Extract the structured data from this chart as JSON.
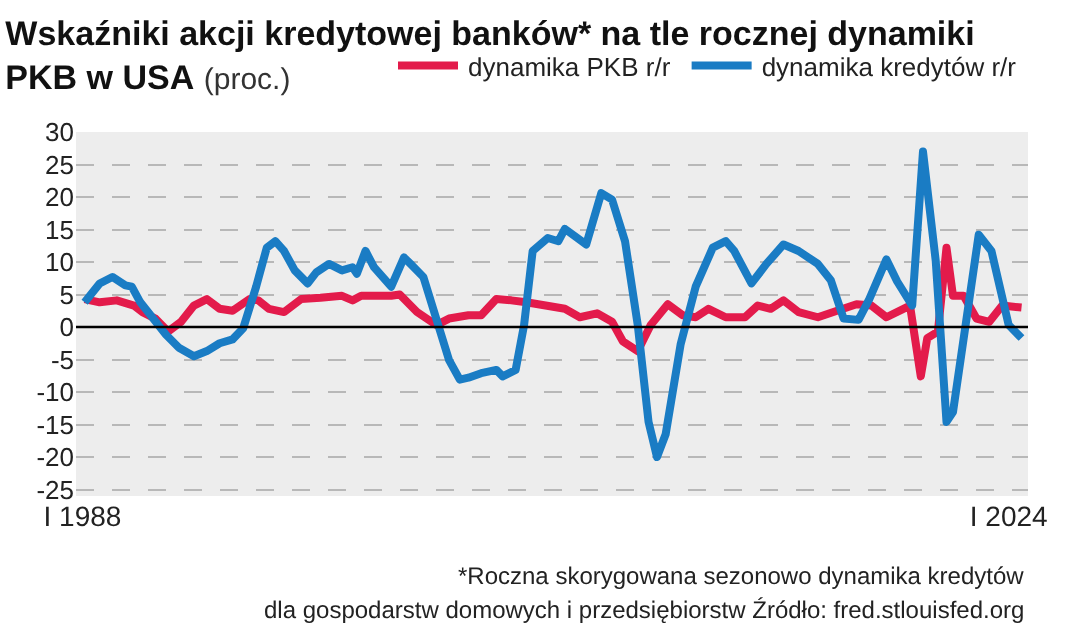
{
  "chart_data": {
    "type": "line",
    "title": "Wskaźniki akcji kredytowej banków* na tle rocznej dynamiki PKB w USA",
    "subtitle": "(proc.)",
    "annotations": [
      "*Roczna skorygowana sezonowo dynamika kredytów",
      "dla gospodarstw domowych i przedsiębiorstw Źródło: fred.stlouisfed.org"
    ],
    "xlim": [
      "1987-10",
      "2024-10"
    ],
    "xticks": [
      {
        "value": "1988-01",
        "label": "I 1988"
      },
      {
        "value": "2024-01",
        "label": "I 2024"
      }
    ],
    "ylim": [
      -26,
      30
    ],
    "yticks": [
      -25,
      -20,
      -15,
      -10,
      -5,
      0,
      5,
      10,
      15,
      20,
      25,
      30
    ],
    "grid": "y",
    "legend": "top right",
    "ref_lines": [
      {
        "axis": "y",
        "value": 0,
        "color": "#000000",
        "line_style": "solid"
      }
    ],
    "series": [
      {
        "name": "dynamika PKB r/r",
        "color": "#e31b4b",
        "x": [
          "1988-02",
          "1988-09",
          "1989-05",
          "1990-01",
          "1990-05",
          "1990-11",
          "1991-05",
          "1991-11",
          "1992-05",
          "1992-11",
          "1993-05",
          "1993-11",
          "1994-07",
          "1994-11",
          "1995-04",
          "1995-11",
          "1996-07",
          "1997-04",
          "1998-02",
          "1998-07",
          "1998-11",
          "2000-01",
          "2000-05",
          "2001-01",
          "2001-10",
          "2002-04",
          "2003-01",
          "2003-07",
          "2004-02",
          "2004-09",
          "2005-04",
          "2006-01",
          "2006-10",
          "2007-05",
          "2008-01",
          "2008-08",
          "2009-01",
          "2009-08",
          "2010-02",
          "2010-10",
          "2011-05",
          "2011-11",
          "2012-05",
          "2013-01",
          "2013-10",
          "2014-04",
          "2014-10",
          "2015-04",
          "2015-11",
          "2016-08",
          "2017-05",
          "2018-02",
          "2018-09",
          "2019-04",
          "2020-03",
          "2020-08",
          "2020-11",
          "2021-04",
          "2021-08",
          "2021-11",
          "2022-04",
          "2022-10",
          "2023-04",
          "2023-10",
          "2024-07"
        ],
        "values": [
          4.3,
          3.8,
          4.1,
          3.3,
          2.3,
          1.3,
          -0.7,
          0.8,
          3.3,
          4.3,
          2.8,
          2.5,
          4.3,
          4.1,
          2.8,
          2.3,
          4.3,
          4.5,
          4.8,
          4.1,
          4.8,
          4.8,
          5.0,
          2.3,
          0.3,
          1.3,
          1.8,
          1.8,
          4.3,
          4.1,
          3.8,
          3.3,
          2.8,
          1.5,
          2.1,
          0.8,
          -2.2,
          -3.7,
          0.3,
          3.5,
          1.8,
          1.5,
          2.8,
          1.5,
          1.5,
          3.3,
          2.8,
          4.1,
          2.3,
          1.5,
          2.5,
          3.5,
          3.3,
          1.5,
          3.3,
          -7.6,
          -1.7,
          -0.7,
          12.2,
          4.8,
          4.8,
          1.3,
          0.8,
          3.3,
          3.0
        ]
      },
      {
        "name": "dynamika kredytów r/r",
        "color": "#1a7cc4",
        "x": [
          "1988-02",
          "1988-09",
          "1989-03",
          "1989-09",
          "1989-12",
          "1990-04",
          "1990-10",
          "1991-04",
          "1991-10",
          "1992-05",
          "1992-11",
          "1993-05",
          "1993-11",
          "1994-04",
          "1994-10",
          "1995-03",
          "1995-07",
          "1995-11",
          "1996-04",
          "1996-10",
          "1997-02",
          "1997-08",
          "1998-02",
          "1998-07",
          "1998-09",
          "1999-01",
          "1999-05",
          "2000-01",
          "2000-07",
          "2000-10",
          "2001-04",
          "2001-10",
          "2002-04",
          "2002-09",
          "2003-01",
          "2003-07",
          "2004-02",
          "2004-05",
          "2004-11",
          "2005-03",
          "2005-07",
          "2006-02",
          "2006-07",
          "2006-10",
          "2007-08",
          "2008-03",
          "2008-08",
          "2009-02",
          "2009-08",
          "2010-01",
          "2010-05",
          "2010-09",
          "2011-04",
          "2011-11",
          "2012-07",
          "2013-01",
          "2013-05",
          "2014-01",
          "2014-08",
          "2015-04",
          "2015-11",
          "2016-08",
          "2017-02",
          "2017-08",
          "2018-03",
          "2018-08",
          "2019-04",
          "2019-09",
          "2020-04",
          "2020-09",
          "2021-03",
          "2021-08",
          "2021-11",
          "2022-11",
          "2023-05",
          "2024-01",
          "2024-07"
        ],
        "values": [
          3.8,
          6.7,
          7.7,
          6.4,
          6.2,
          3.8,
          1.3,
          -1.2,
          -3.2,
          -4.5,
          -3.7,
          -2.5,
          -1.9,
          -0.2,
          6.2,
          12.2,
          13.2,
          11.7,
          8.7,
          6.7,
          8.4,
          9.7,
          8.7,
          9.2,
          8.2,
          11.7,
          9.2,
          6.2,
          10.7,
          9.7,
          7.7,
          1.3,
          -5.1,
          -8.1,
          -7.8,
          -7.1,
          -6.6,
          -7.6,
          -6.6,
          0.3,
          11.7,
          13.7,
          13.2,
          15.1,
          12.7,
          20.6,
          19.6,
          13.2,
          0.3,
          -14.6,
          -20.0,
          -16.5,
          -2.7,
          6.2,
          12.2,
          13.2,
          11.7,
          6.7,
          9.7,
          12.7,
          11.7,
          9.7,
          7.2,
          1.3,
          1.1,
          4.3,
          10.4,
          7.0,
          3.3,
          27.0,
          10.2,
          -14.6,
          -13.1,
          14.2,
          11.7,
          0.3,
          -1.7
        ]
      }
    ]
  }
}
